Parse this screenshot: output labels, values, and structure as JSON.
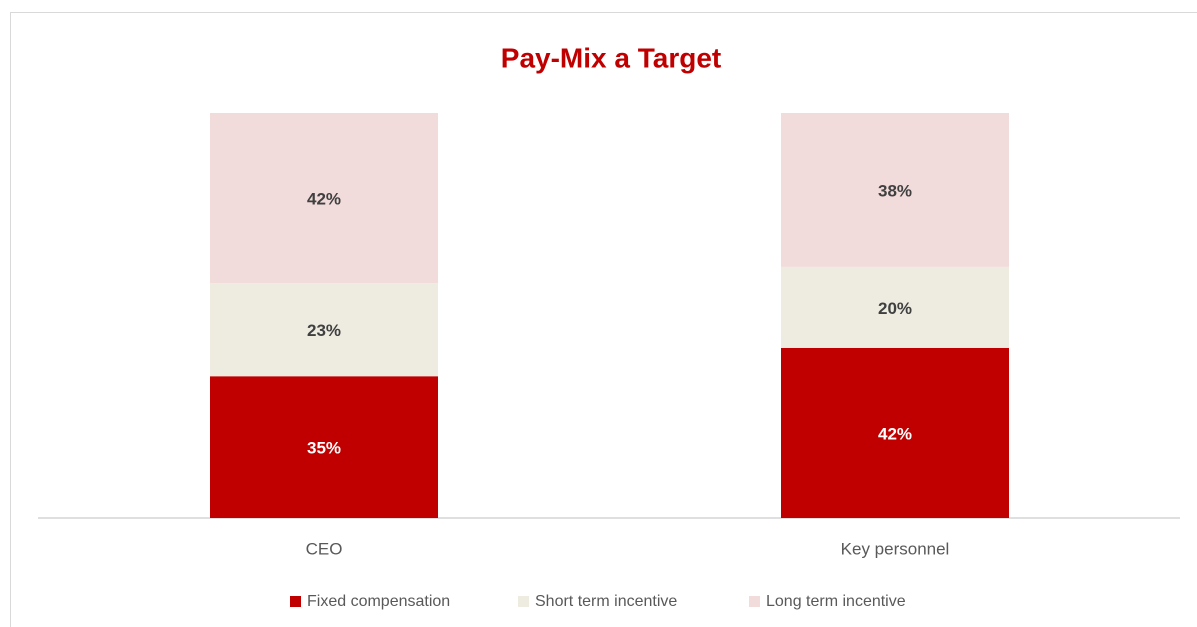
{
  "chart_data": {
    "type": "stacked_bar",
    "title": "Pay-Mix a Target",
    "categories": [
      "CEO",
      "Key personnel"
    ],
    "series": [
      {
        "name": "Fixed compensation",
        "color": "#c00000",
        "values": [
          35,
          42
        ],
        "value_labels": [
          "35%",
          "42%"
        ]
      },
      {
        "name": "Short term incentive",
        "color": "#eeece1",
        "values": [
          23,
          20
        ],
        "value_labels": [
          "23%",
          "20%"
        ]
      },
      {
        "name": "Long term incentive",
        "color": "#f2dcdb",
        "values": [
          42,
          38
        ],
        "value_labels": [
          "42%",
          "38%"
        ]
      }
    ],
    "ylim": [
      0,
      100
    ],
    "legend": "bottom"
  }
}
